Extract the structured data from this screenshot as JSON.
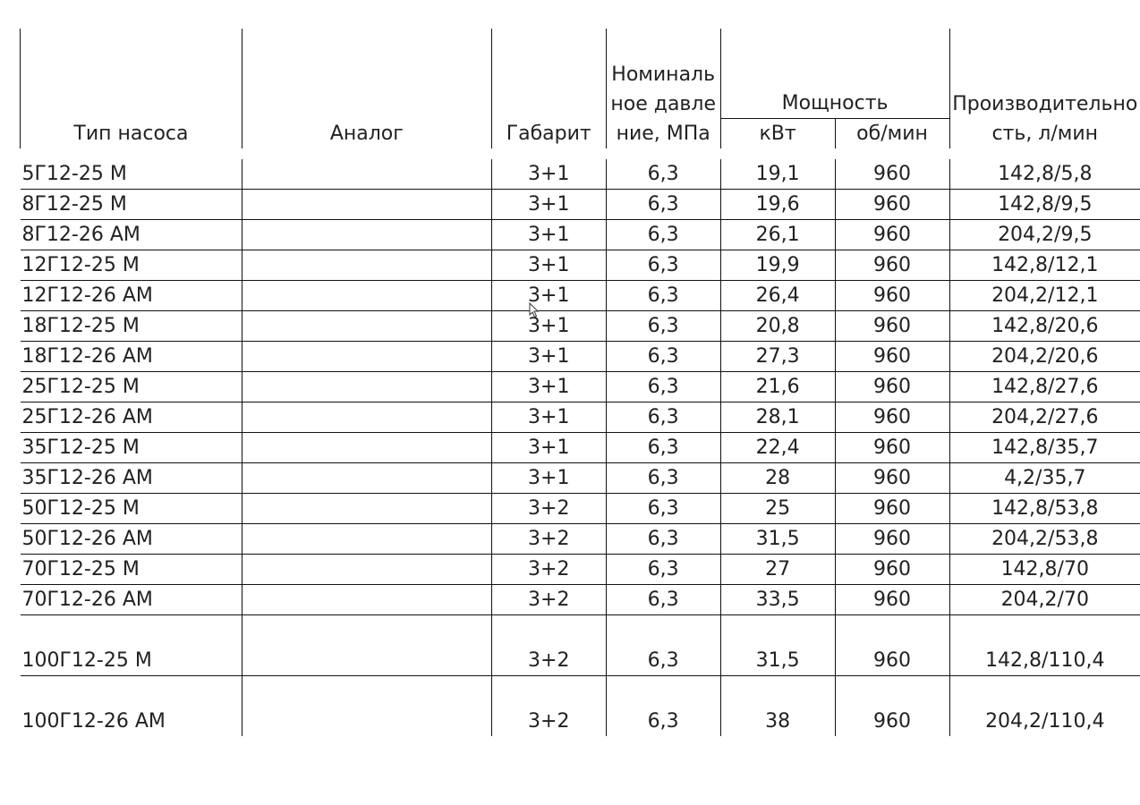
{
  "header": {
    "type": "Тип насоса",
    "analog": "Аналог",
    "size": "Габарит",
    "pressure": "Номинальное давление, МПа",
    "power_group": "Мощность",
    "power_kw": "кВт",
    "rpm": "об/мин",
    "capacity": "Производительность, л/мин"
  },
  "rows": [
    {
      "type": "5Г12-25 М",
      "analog": "",
      "size": "3+1",
      "pressure": "6,3",
      "kw": "19,1",
      "rpm": "960",
      "capacity": "142,8/5,8"
    },
    {
      "type": "8Г12-25 М",
      "analog": "",
      "size": "3+1",
      "pressure": "6,3",
      "kw": "19,6",
      "rpm": "960",
      "capacity": "142,8/9,5"
    },
    {
      "type": "8Г12-26 АМ",
      "analog": "",
      "size": "3+1",
      "pressure": "6,3",
      "kw": "26,1",
      "rpm": "960",
      "capacity": "204,2/9,5"
    },
    {
      "type": "12Г12-25 М",
      "analog": "",
      "size": "3+1",
      "pressure": "6,3",
      "kw": "19,9",
      "rpm": "960",
      "capacity": "142,8/12,1"
    },
    {
      "type": "12Г12-26 АМ",
      "analog": "",
      "size": "3+1",
      "pressure": "6,3",
      "kw": "26,4",
      "rpm": "960",
      "capacity": "204,2/12,1"
    },
    {
      "type": "18Г12-25 М",
      "analog": "",
      "size": "3+1",
      "pressure": "6,3",
      "kw": "20,8",
      "rpm": "960",
      "capacity": "142,8/20,6"
    },
    {
      "type": "18Г12-26 АМ",
      "analog": "",
      "size": "3+1",
      "pressure": "6,3",
      "kw": "27,3",
      "rpm": "960",
      "capacity": "204,2/20,6"
    },
    {
      "type": "25Г12-25 М",
      "analog": "",
      "size": "3+1",
      "pressure": "6,3",
      "kw": "21,6",
      "rpm": "960",
      "capacity": "142,8/27,6"
    },
    {
      "type": "25Г12-26 АМ",
      "analog": "",
      "size": "3+1",
      "pressure": "6,3",
      "kw": "28,1",
      "rpm": "960",
      "capacity": "204,2/27,6"
    },
    {
      "type": "35Г12-25 М",
      "analog": "",
      "size": "3+1",
      "pressure": "6,3",
      "kw": "22,4",
      "rpm": "960",
      "capacity": "142,8/35,7"
    },
    {
      "type": "35Г12-26 АМ",
      "analog": "",
      "size": "3+1",
      "pressure": "6,3",
      "kw": "28",
      "rpm": "960",
      "capacity": "4,2/35,7"
    },
    {
      "type": "50Г12-25 М",
      "analog": "",
      "size": "3+2",
      "pressure": "6,3",
      "kw": "25",
      "rpm": "960",
      "capacity": "142,8/53,8"
    },
    {
      "type": "50Г12-26 АМ",
      "analog": "",
      "size": "3+2",
      "pressure": "6,3",
      "kw": "31,5",
      "rpm": "960",
      "capacity": "204,2/53,8"
    },
    {
      "type": "70Г12-25 М",
      "analog": "",
      "size": "3+2",
      "pressure": "6,3",
      "kw": "27",
      "rpm": "960",
      "capacity": "142,8/70"
    },
    {
      "type": "70Г12-26 АМ",
      "analog": "",
      "size": "3+2",
      "pressure": "6,3",
      "kw": "33,5",
      "rpm": "960",
      "capacity": "204,2/70"
    },
    {
      "type": "100Г12-25 М",
      "analog": "",
      "size": "3+2",
      "pressure": "6,3",
      "kw": "31,5",
      "rpm": "960",
      "capacity": "142,8/110,4",
      "tall": true
    },
    {
      "type": "100Г12-26 АМ",
      "analog": "",
      "size": "3+2",
      "pressure": "6,3",
      "kw": "38",
      "rpm": "960",
      "capacity": "204,2/110,4",
      "tall": true
    }
  ],
  "cursor_icon": "mouse-pointer-icon"
}
